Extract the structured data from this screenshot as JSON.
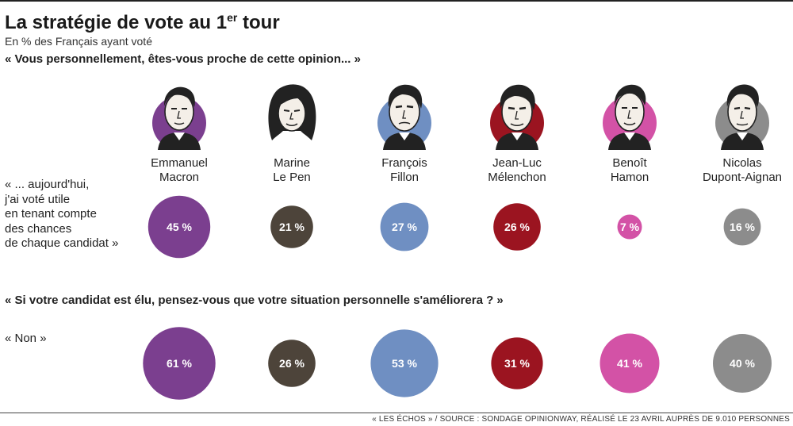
{
  "header": {
    "title_main": "La stratégie de vote au 1",
    "title_sup": "er",
    "title_end": " tour",
    "subtitle": "En % des Français ayant voté"
  },
  "question1": {
    "text": "« Vous personnellement, êtes-vous proche de cette opinion... »",
    "answer_lines": [
      "« ... aujourd'hui,",
      "j'ai voté utile",
      "en tenant compte",
      "des chances",
      "de chaque candidat »"
    ]
  },
  "question2": {
    "text": "« Si votre candidat est élu, pensez-vous que votre situation personnelle s'améliorera ? »",
    "answer": "« Non »"
  },
  "candidates": [
    {
      "line1": "Emmanuel",
      "line2": "Macron",
      "color": "#7b3f8f",
      "portrait_icon": "macron-portrait-icon"
    },
    {
      "line1": "Marine",
      "line2": "Le Pen",
      "color": "#4d443a",
      "portrait_icon": "le-pen-portrait-icon"
    },
    {
      "line1": "François",
      "line2": "Fillon",
      "color": "#6f8fc2",
      "portrait_icon": "fillon-portrait-icon"
    },
    {
      "line1": "Jean-Luc",
      "line2": "Mélenchon",
      "color": "#9b1420",
      "portrait_icon": "melenchon-portrait-icon"
    },
    {
      "line1": "Benoît",
      "line2": "Hamon",
      "color": "#d352a6",
      "portrait_icon": "hamon-portrait-icon"
    },
    {
      "line1": "Nicolas",
      "line2": "Dupont-Aignan",
      "color": "#8c8c8c",
      "portrait_icon": "dupont-aignan-portrait-icon"
    }
  ],
  "chart_data": {
    "type": "bubble",
    "categories": [
      "Emmanuel Macron",
      "Marine Le Pen",
      "François Fillon",
      "Jean-Luc Mélenchon",
      "Benoît Hamon",
      "Nicolas Dupont-Aignan"
    ],
    "series": [
      {
        "values": [
          45,
          21,
          27,
          26,
          7,
          16
        ],
        "labels": [
          "45 %",
          "21 %",
          "27 %",
          "26 %",
          "7 %",
          "16 %"
        ]
      },
      {
        "values": [
          61,
          26,
          53,
          31,
          41,
          40
        ],
        "labels": [
          "61 %",
          "26 %",
          "53 %",
          "31 %",
          "41 %",
          "40 %"
        ]
      }
    ],
    "unit": "%"
  },
  "source": "« LES ÉCHOS » / SOURCE : SONDAGE OPINIONWAY, RÉALISÉ LE 23 AVRIL AUPRÈS DE 9.010 PERSONNES"
}
